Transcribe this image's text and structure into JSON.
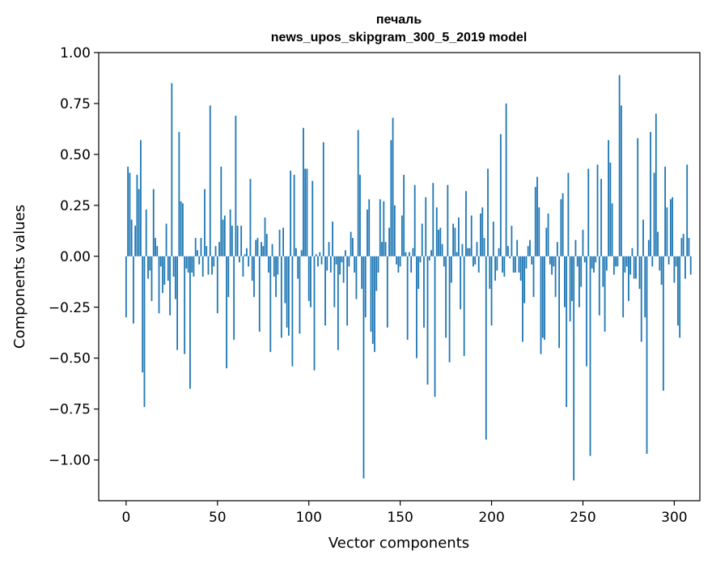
{
  "chart_data": {
    "type": "bar",
    "title": "печаль",
    "subtitle": "news_upos_skipgram_300_5_2019 model",
    "xlabel": "Vector components",
    "ylabel": "Components values",
    "xlim": [
      -15,
      314
    ],
    "ylim": [
      -1.2,
      1.0
    ],
    "x_ticks": [
      0,
      50,
      100,
      150,
      200,
      250,
      300
    ],
    "x_tick_labels": [
      "0",
      "50",
      "100",
      "150",
      "200",
      "250",
      "300"
    ],
    "y_ticks": [
      1.0,
      0.75,
      0.5,
      0.25,
      0.0,
      -0.25,
      -0.5,
      -0.75,
      -1.0
    ],
    "y_tick_labels": [
      "1.00",
      "0.75",
      "0.50",
      "0.25",
      "0.00",
      "−0.25",
      "−0.50",
      "−0.75",
      "−1.00"
    ],
    "bar_color": "#1f77b4",
    "values": [
      -0.3,
      0.44,
      0.41,
      0.18,
      -0.33,
      0.15,
      0.4,
      0.33,
      0.57,
      -0.57,
      -0.74,
      0.23,
      -0.11,
      -0.07,
      -0.22,
      0.33,
      0.09,
      0.05,
      -0.28,
      -0.05,
      -0.18,
      -0.14,
      0.16,
      -0.12,
      -0.29,
      0.85,
      -0.1,
      -0.21,
      -0.46,
      0.61,
      0.27,
      0.26,
      -0.48,
      -0.06,
      -0.08,
      -0.65,
      -0.08,
      -0.1,
      0.09,
      0.03,
      -0.04,
      0.09,
      -0.1,
      0.33,
      0.05,
      -0.09,
      0.74,
      -0.09,
      -0.05,
      0.05,
      -0.28,
      0.07,
      0.44,
      0.18,
      0.2,
      -0.55,
      -0.2,
      0.23,
      0.15,
      -0.41,
      0.69,
      0.15,
      -0.03,
      0.15,
      -0.1,
      0.01,
      0.04,
      -0.05,
      0.38,
      -0.12,
      -0.2,
      0.08,
      0.09,
      -0.37,
      0.07,
      0.05,
      0.19,
      0.11,
      -0.08,
      -0.47,
      0.06,
      -0.1,
      -0.2,
      -0.09,
      0.13,
      -0.4,
      0.14,
      -0.23,
      -0.35,
      -0.39,
      0.42,
      -0.54,
      0.4,
      0.04,
      -0.11,
      -0.38,
      0.03,
      0.63,
      0.43,
      0.43,
      -0.22,
      -0.25,
      0.37,
      -0.56,
      0.01,
      -0.05,
      0.02,
      -0.04,
      0.56,
      -0.34,
      -0.07,
      0.07,
      -0.08,
      0.17,
      -0.25,
      -0.04,
      -0.46,
      -0.09,
      -0.03,
      -0.13,
      0.03,
      -0.34,
      -0.05,
      0.12,
      0.09,
      -0.08,
      -0.21,
      0.62,
      0.4,
      -0.16,
      -1.09,
      -0.3,
      0.23,
      0.28,
      -0.37,
      -0.43,
      -0.47,
      -0.17,
      -0.08,
      0.28,
      0.07,
      0.27,
      0.07,
      -0.35,
      0.14,
      0.57,
      0.68,
      0.25,
      -0.04,
      -0.08,
      -0.05,
      0.2,
      0.4,
      0.02,
      -0.41,
      0.02,
      -0.08,
      0.04,
      0.35,
      -0.5,
      -0.16,
      -0.03,
      0.16,
      -0.35,
      0.29,
      -0.63,
      -0.02,
      0.03,
      0.36,
      -0.69,
      0.24,
      0.13,
      0.14,
      0.06,
      -0.05,
      -0.4,
      0.35,
      -0.52,
      -0.13,
      0.16,
      0.14,
      0.02,
      0.19,
      -0.26,
      0.06,
      -0.49,
      0.32,
      0.04,
      0.04,
      0.2,
      -0.05,
      -0.04,
      0.07,
      -0.08,
      0.21,
      0.24,
      0.09,
      -0.9,
      0.43,
      -0.16,
      -0.34,
      0.17,
      -0.12,
      -0.07,
      0.04,
      0.6,
      -0.08,
      -0.1,
      0.75,
      0.05,
      -0.01,
      0.15,
      -0.08,
      -0.08,
      0.08,
      -0.08,
      -0.12,
      -0.42,
      -0.23,
      -0.06,
      0.05,
      0.08,
      -0.04,
      -0.2,
      0.34,
      0.39,
      0.24,
      -0.48,
      -0.4,
      -0.41,
      0.14,
      0.21,
      -0.04,
      -0.09,
      -0.05,
      -0.2,
      0.07,
      -0.45,
      0.28,
      0.31,
      -0.25,
      -0.74,
      0.41,
      -0.32,
      -0.22,
      -1.1,
      0.08,
      -0.05,
      -0.25,
      -0.15,
      0.13,
      -0.03,
      -0.54,
      0.43,
      -0.98,
      -0.06,
      -0.08,
      -0.03,
      0.45,
      -0.29,
      0.38,
      -0.15,
      -0.37,
      -0.07,
      0.57,
      0.46,
      0.26,
      -0.09,
      -0.05,
      -0.05,
      0.89,
      0.74,
      -0.3,
      -0.08,
      -0.05,
      -0.22,
      -0.09,
      0.04,
      -0.11,
      -0.11,
      0.58,
      -0.16,
      -0.42,
      0.18,
      -0.3,
      -0.97,
      0.08,
      0.61,
      -0.05,
      0.41,
      0.7,
      0.12,
      -0.07,
      -0.14,
      -0.66,
      0.44,
      0.24,
      -0.04,
      0.28,
      0.29,
      -0.13,
      -0.05,
      -0.34,
      -0.4,
      0.09,
      0.11,
      -0.11,
      0.45,
      0.09,
      -0.09
    ]
  }
}
